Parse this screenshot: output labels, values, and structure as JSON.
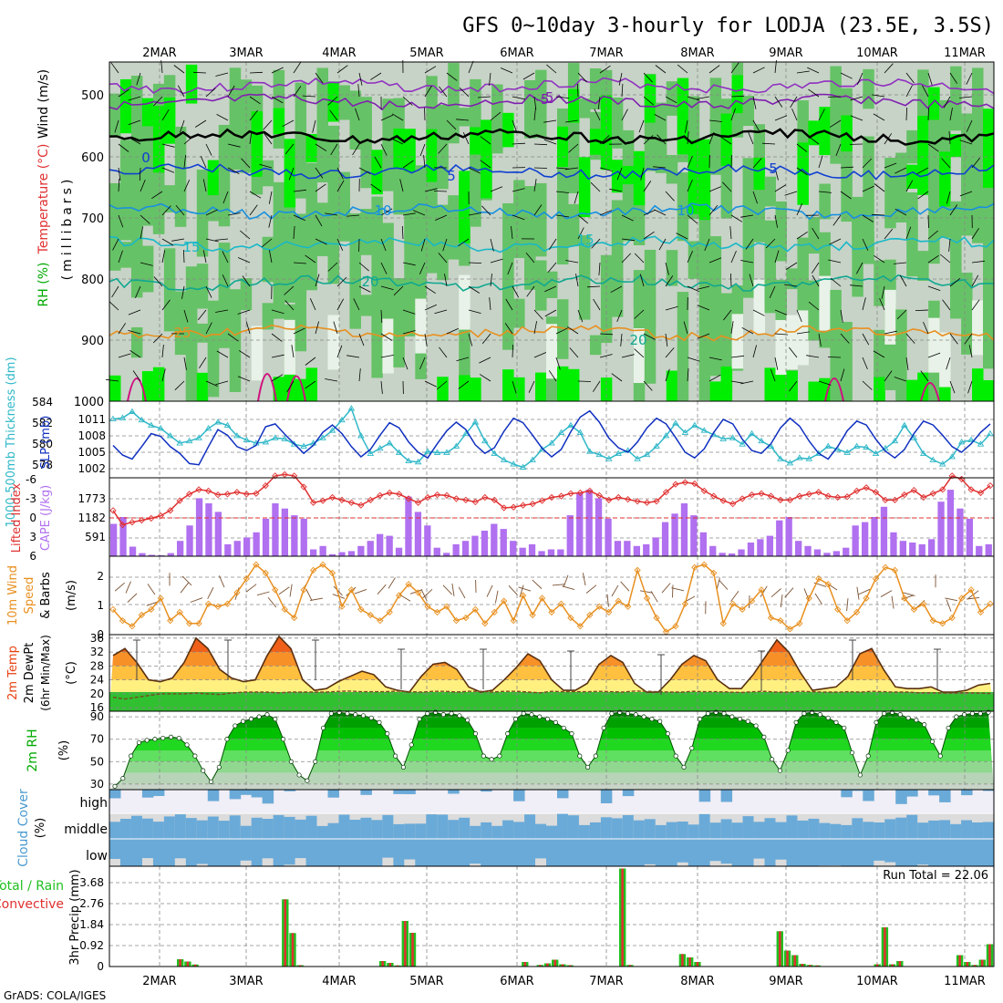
{
  "title": "GFS 0~10day 3-hourly for LODJA (23.5E, 3.5S)",
  "credit": "GrADS: COLA/IGES",
  "dates": [
    "2MAR",
    "3MAR",
    "4MAR",
    "5MAR",
    "6MAR",
    "7MAR",
    "8MAR",
    "9MAR",
    "10MAR",
    "11MAR"
  ],
  "colors": {
    "rh_dark": "#00ee00",
    "rh_mid": "#66c266",
    "rh_gray": "#c7d3c7",
    "rh_light": "#e8f2e8",
    "slp": "#1030c0",
    "thickness": "#30b8c8",
    "cape": "#b070f0",
    "lifted": "#e03030",
    "wind": "#e89020",
    "temp_hot": "#e84010",
    "temp_warm": "#ffd840",
    "dewpt": "#20c020",
    "rh2m": "#009000",
    "cloud": "#6aaad8",
    "precip_total": "#20c020",
    "precip_conv": "#e03030"
  },
  "panels": {
    "upper": {
      "ylabel_rh": "RH (%)",
      "ylabel_temp": "Temperature (°C)",
      "ylabel_wind": "Wind (m/s)",
      "ylabel_units": "(millibars)",
      "y_ticks": [
        "500",
        "600",
        "700",
        "800",
        "900",
        "1000"
      ],
      "isotherm_labels": [
        "-5",
        "-5",
        "0",
        "5",
        "5",
        "10",
        "10",
        "15",
        "15",
        "20",
        "25",
        "20"
      ]
    },
    "slp": {
      "ylabel_left": "1000-500mb Thickness (dm)",
      "ylabel_right": "SLP (mb)",
      "left_ticks": [
        "584",
        "582",
        "580",
        "578"
      ],
      "right_ticks": [
        "1011",
        "1008",
        "1005",
        "1002"
      ]
    },
    "cape": {
      "ylabel_left": "Lifted Index",
      "ylabel_right": "CAPE (J/kg)",
      "left_ticks": [
        "-6",
        "-3",
        "0",
        "3",
        "6"
      ],
      "right_ticks": [
        "1773",
        "1182",
        "591"
      ]
    },
    "wind": {
      "ylabel_a": "10m Wind",
      "ylabel_b": "Speed",
      "ylabel_c": "& Barbs",
      "units": "(m/s)",
      "ticks": [
        "0",
        "1",
        "2"
      ]
    },
    "temp": {
      "ylabel_a": "2m Temp",
      "ylabel_b": "2m DewPt",
      "ylabel_c": "(6hr Min/Max)",
      "units": "(°C)",
      "ticks": [
        "16",
        "20",
        "24",
        "28",
        "32",
        "36"
      ]
    },
    "rh": {
      "ylabel": "2m RH",
      "units": "(%)",
      "ticks": [
        "30",
        "50",
        "70",
        "90"
      ]
    },
    "cloud": {
      "ylabel": "Cloud Cover",
      "units": "(%)",
      "rows": [
        "high",
        "middle",
        "low"
      ]
    },
    "precip": {
      "ylabel_a": "Total / Rain",
      "ylabel_b": "Convective",
      "ylabel_c": "3hr Precip (mm)",
      "ticks": [
        "0",
        "0.92",
        "1.84",
        "2.76",
        "3.68"
      ],
      "run_total": "Run Total = 22.06"
    }
  },
  "chart_data": [
    {
      "type": "line",
      "title": "SLP (mb)",
      "unit": "mb",
      "ylim": [
        1000.5,
        1014
      ],
      "values": [
        1006.2,
        1004.5,
        1003.8,
        1006.0,
        1008.3,
        1007.8,
        1006.0,
        1004.8,
        1003.0,
        1002.8,
        1006.0,
        1009.0,
        1008.0,
        1006.0,
        1005.3,
        1006.2,
        1009.5,
        1010.0,
        1008.2,
        1006.5,
        1004.8,
        1006.2,
        1008.5,
        1009.8,
        1008.3,
        1006.0,
        1004.2,
        1005.5,
        1008.0,
        1010.2,
        1009.3,
        1006.8,
        1005.0,
        1004.0,
        1006.5,
        1008.8,
        1010.3,
        1009.0,
        1006.3,
        1004.8,
        1005.8,
        1008.7,
        1011.0,
        1010.2,
        1008.0,
        1005.7,
        1004.2,
        1005.5,
        1008.6,
        1011.2,
        1012.3,
        1010.3,
        1007.5,
        1005.8,
        1005.0,
        1006.8,
        1009.3,
        1011.0,
        1010.0,
        1007.6,
        1005.0,
        1004.0,
        1005.6,
        1008.5,
        1010.8,
        1010.0,
        1007.3,
        1005.3,
        1004.8,
        1006.5,
        1009.3,
        1011.0,
        1009.6,
        1007.0,
        1004.8,
        1003.8,
        1006.0,
        1008.8,
        1010.5,
        1009.8,
        1007.3,
        1005.2,
        1004.0,
        1005.5,
        1008.3,
        1010.5,
        1009.8,
        1008.0,
        1006.0,
        1005.0,
        1006.5,
        1008.5,
        1010.0
      ]
    },
    {
      "type": "line",
      "title": "1000-500mb Thickness (dm)",
      "unit": "dm",
      "ylim": [
        577,
        584.3
      ],
      "values": [
        582.6,
        582.7,
        583.3,
        582.5,
        582.0,
        581.7,
        581.0,
        580.3,
        580.5,
        580.8,
        581.7,
        582.3,
        582.0,
        581.0,
        580.6,
        580.3,
        580.4,
        580.8,
        580.7,
        580.2,
        580.0,
        580.3,
        580.8,
        581.5,
        582.5,
        583.6,
        581.0,
        579.3,
        579.8,
        580.3,
        579.4,
        578.6,
        578.5,
        579.5,
        579.4,
        579.4,
        580.0,
        581.2,
        582.3,
        580.5,
        579.3,
        578.7,
        578.3,
        578.0,
        578.7,
        579.7,
        580.3,
        581.3,
        582.0,
        581.3,
        579.5,
        579.2,
        578.8,
        579.3,
        579.6,
        578.8,
        579.2,
        580.0,
        581.0,
        582.2,
        581.3,
        582.0,
        581.5,
        581.1,
        580.7,
        580.8,
        580.2,
        581.2,
        580.5,
        580.0,
        578.8,
        578.4,
        578.9,
        578.8,
        579.3,
        580.0,
        579.7,
        579.4,
        580.0,
        579.9,
        579.3,
        579.8,
        580.5,
        582.0,
        580.8,
        579.3,
        578.7,
        578.3,
        579.0,
        580.4,
        580.6,
        580.2,
        581.2
      ]
    },
    {
      "type": "bar",
      "title": "CAPE (J/kg)",
      "unit": "J/kg",
      "ylim": [
        0,
        2300
      ],
      "values": [
        950,
        1150,
        280,
        90,
        40,
        30,
        90,
        450,
        900,
        1700,
        1550,
        1300,
        350,
        450,
        550,
        700,
        1100,
        1550,
        1400,
        1200,
        1100,
        200,
        300,
        60,
        120,
        150,
        300,
        450,
        650,
        600,
        250,
        1750,
        1300,
        900,
        250,
        100,
        350,
        450,
        600,
        750,
        950,
        800,
        450,
        250,
        350,
        150,
        200,
        200,
        1200,
        1850,
        1950,
        1700,
        1100,
        450,
        450,
        300,
        350,
        550,
        1000,
        1250,
        1550,
        1200,
        700,
        300,
        100,
        80,
        200,
        400,
        500,
        600,
        1050,
        1150,
        450,
        300,
        200,
        100,
        150,
        250,
        900,
        1000,
        1150,
        1450,
        700,
        450,
        400,
        350,
        500,
        1600,
        1950,
        1400,
        1100,
        300,
        350
      ]
    },
    {
      "type": "line",
      "title": "Lifted Index",
      "ylim": [
        6,
        -6
      ],
      "values": [
        -1.0,
        1.2,
        0.8,
        0.5,
        0.2,
        -0.2,
        -1.0,
        -2.5,
        -3.5,
        -4.2,
        -4.0,
        -3.4,
        -3.5,
        -3.8,
        -3.5,
        -3.6,
        -4.8,
        -6.3,
        -6.5,
        -6.3,
        -4.6,
        -2.2,
        -2.5,
        -3.0,
        -2.6,
        -2.2,
        -1.8,
        -2.6,
        -3.3,
        -3.7,
        -3.5,
        -2.8,
        -2.2,
        -3.0,
        -3.4,
        -3.3,
        -2.8,
        -2.6,
        -2.3,
        -3.0,
        -2.6,
        -1.4,
        -1.5,
        -1.8,
        -2.0,
        -2.5,
        -3.0,
        -3.2,
        -3.6,
        -3.7,
        -4.0,
        -3.3,
        -2.6,
        -3.0,
        -2.7,
        -2.4,
        -2.2,
        -2.4,
        -3.8,
        -5.0,
        -5.3,
        -5.1,
        -4.0,
        -3.2,
        -2.5,
        -2.0,
        -2.8,
        -3.4,
        -3.6,
        -3.2,
        -2.6,
        -2.6,
        -3.2,
        -3.5,
        -3.8,
        -3.2,
        -3.0,
        -3.1,
        -4.0,
        -4.5,
        -3.8,
        -2.6,
        -2.6,
        -3.4,
        -4.1,
        -3.0,
        -3.6,
        -4.2,
        -6.3,
        -5.8,
        -4.2,
        -3.7,
        -4.8
      ]
    },
    {
      "type": "line",
      "title": "10m Wind Speed",
      "unit": "m/s",
      "ylim": [
        0,
        2.8
      ],
      "values": [
        0.9,
        0.5,
        0.3,
        0.7,
        0.9,
        1.3,
        0.5,
        0.8,
        0.4,
        0.4,
        1.1,
        1.0,
        1.1,
        1.5,
        2.0,
        2.5,
        2.2,
        1.6,
        0.9,
        0.6,
        1.6,
        2.3,
        2.5,
        2.2,
        1.0,
        1.6,
        0.9,
        0.7,
        0.5,
        0.8,
        1.4,
        1.8,
        1.5,
        1.0,
        0.8,
        1.0,
        0.5,
        0.6,
        0.9,
        0.4,
        0.8,
        1.2,
        0.5,
        1.4,
        0.7,
        1.3,
        0.8,
        1.1,
        0.6,
        0.3,
        0.7,
        1.0,
        0.8,
        1.2,
        1.0,
        2.3,
        1.3,
        0.6,
        0.1,
        0.3,
        1.1,
        2.4,
        2.5,
        2.2,
        0.4,
        1.1,
        0.9,
        1.2,
        1.6,
        0.6,
        0.5,
        0.2,
        0.4,
        1.3,
        2.0,
        1.8,
        0.9,
        0.5,
        0.8,
        1.3,
        2.0,
        2.4,
        2.3,
        1.3,
        0.9,
        1.1,
        0.5,
        0.4,
        0.6,
        1.3,
        1.6,
        0.8,
        1.1
      ]
    },
    {
      "type": "area",
      "title": "2m Temp",
      "unit": "°C",
      "ylim": [
        15,
        37
      ],
      "values": [
        31,
        33,
        29,
        24,
        23.5,
        24.5,
        29,
        36,
        33,
        27,
        24.5,
        23.5,
        24,
        31,
        36.5,
        33,
        24,
        21,
        21.5,
        23.5,
        25,
        26.5,
        25.5,
        22,
        21,
        20.5,
        25,
        28.5,
        29,
        27,
        22,
        20.5,
        21,
        24,
        27.5,
        31.5,
        29.5,
        24,
        21,
        21,
        23,
        28.5,
        31,
        29,
        23,
        20.5,
        20.5,
        24,
        28.5,
        31,
        29.5,
        24,
        21.5,
        21.5,
        25.5,
        30.5,
        35.5,
        32,
        26,
        21,
        21.5,
        22,
        25,
        31.5,
        33,
        27,
        22,
        21.5,
        21.5,
        22,
        20.5,
        20.5,
        21,
        22.5,
        23
      ]
    },
    {
      "type": "line",
      "title": "2m DewPt",
      "unit": "°C",
      "ylim": [
        15,
        37
      ],
      "values": [
        19,
        18.5,
        19,
        19.5,
        20,
        20,
        20,
        20.2,
        20,
        19.8,
        20.2,
        20.5,
        20.5,
        20.5,
        20.3,
        20.5,
        20.5,
        20.5,
        20.5,
        20.7,
        20.8,
        20.6,
        20.6,
        20.6,
        20.8,
        20.6,
        20.5,
        20.7,
        20.7,
        20.5,
        20.7,
        20.7,
        20.5,
        20.7,
        20.7,
        20.5,
        20.3,
        20.7,
        20.6,
        20.6,
        20.6,
        20.7,
        20.6,
        20.5,
        20.8,
        20.7,
        20.6,
        20.5,
        20.5,
        20.7,
        20.6,
        20.6,
        20.5,
        20.4,
        20.6,
        20.7,
        20.5,
        20.5,
        20.7,
        20.6,
        20.5,
        20.5,
        20.6,
        20.5,
        20.7,
        20.6,
        20.5,
        20.5,
        20.3,
        20.3,
        20.2,
        20.2,
        20.3,
        20.2,
        20.1
      ]
    },
    {
      "type": "area",
      "title": "2m RH",
      "unit": "%",
      "ylim": [
        25,
        95
      ],
      "values": [
        28,
        35,
        55,
        67,
        69,
        70,
        71,
        72,
        71,
        65,
        55,
        42,
        32,
        45,
        70,
        82,
        86,
        88,
        90,
        92,
        88,
        70,
        50,
        38,
        33,
        50,
        80,
        93,
        94,
        93,
        92,
        91,
        89,
        85,
        75,
        55,
        45,
        65,
        88,
        93,
        94,
        92,
        93,
        91,
        87,
        75,
        55,
        52,
        55,
        75,
        88,
        93,
        92,
        90,
        88,
        85,
        80,
        75,
        55,
        45,
        55,
        80,
        93,
        94,
        93,
        92,
        90,
        88,
        86,
        75,
        55,
        45,
        62,
        88,
        93,
        94,
        93,
        90,
        88,
        86,
        82,
        72,
        52,
        42,
        60,
        85,
        93,
        94,
        92,
        89,
        85,
        80,
        58,
        38,
        55,
        85,
        93,
        94,
        92,
        89,
        87,
        83,
        68,
        55,
        80,
        90,
        92,
        93,
        93,
        94
      ]
    },
    {
      "type": "bar",
      "title": "3hr Precip (mm)",
      "unit": "mm",
      "ylim": [
        0,
        4.4
      ],
      "values": [
        0,
        0,
        0,
        0,
        0,
        0,
        0,
        0,
        0.0,
        0.32,
        0.22,
        0.09,
        0,
        0,
        0,
        0,
        0,
        0,
        0,
        0,
        0,
        0,
        0,
        2.95,
        1.47,
        0.06,
        0,
        0,
        0,
        0,
        0,
        0,
        0,
        0,
        0,
        0,
        0.24,
        0.16,
        0.05,
        2.0,
        1.48,
        0,
        0,
        0,
        0,
        0,
        0,
        0,
        0,
        0,
        0,
        0,
        0,
        0,
        0,
        0.2,
        0,
        0.07,
        0.14,
        0.3,
        0.1,
        0.06,
        0,
        0,
        0,
        0,
        0,
        0,
        4.3,
        0.07,
        0,
        0,
        0,
        0,
        0,
        0,
        0.55,
        0.4,
        0.2,
        0,
        0,
        0,
        0,
        0,
        0,
        0,
        0,
        0,
        0,
        1.55,
        0.7,
        0.5,
        0.12,
        0.07,
        0.05,
        0,
        0,
        0,
        0,
        0,
        0,
        0,
        0.1,
        1.72,
        0.1,
        0.24,
        0,
        0,
        0,
        0,
        0,
        0,
        0,
        0.5,
        0.2,
        0.07,
        0.3,
        0.98
      ]
    }
  ]
}
